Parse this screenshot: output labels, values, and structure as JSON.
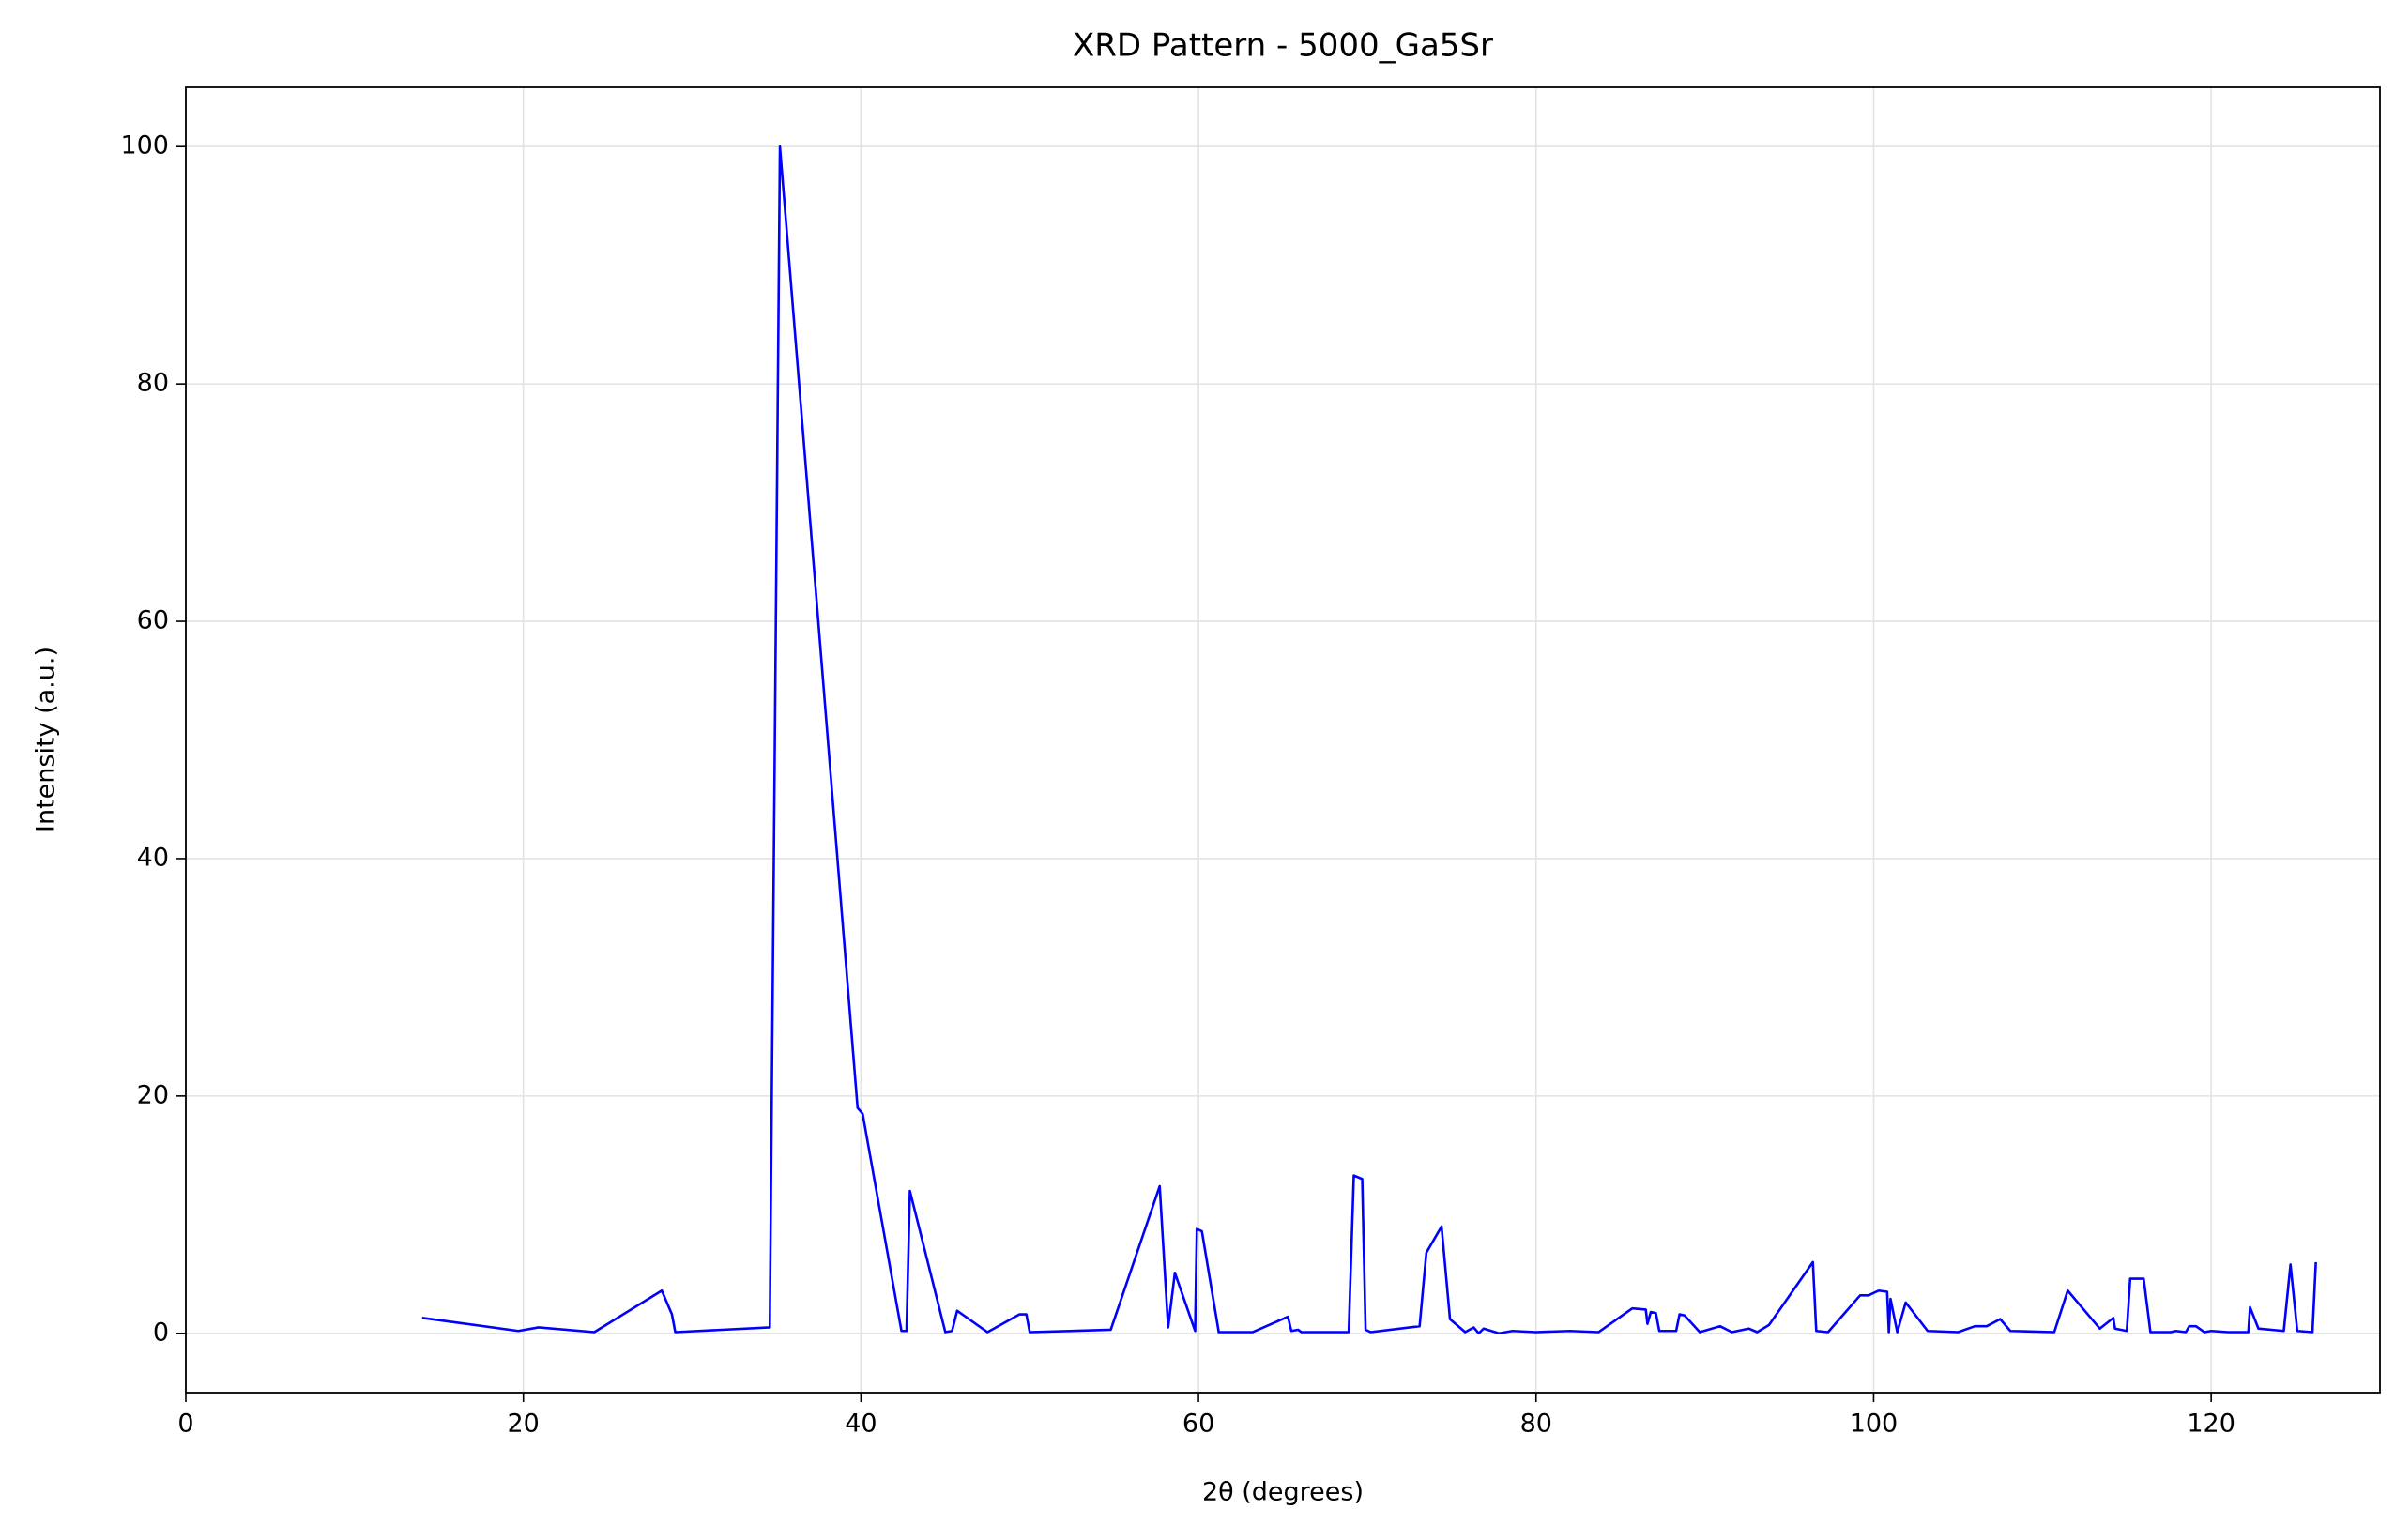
{
  "chart_data": {
    "type": "line",
    "title": "XRD Pattern - 5000_Ga5Sr",
    "x_label": "2θ (degrees)",
    "y_label": "Intensity (a.u.)",
    "xlim": [
      0,
      130
    ],
    "ylim": [
      -5,
      105
    ],
    "xticks": [
      0,
      20,
      40,
      60,
      80,
      100,
      120
    ],
    "yticks": [
      0,
      20,
      40,
      60,
      80,
      100
    ],
    "grid": true,
    "series": [
      {
        "color": "#0000ff",
        "x": [
          14.0,
          19.7,
          20.9,
          24.2,
          28.2,
          28.8,
          29.0,
          34.6,
          35.2,
          39.8,
          40.1,
          42.4,
          42.7,
          42.9,
          45.0,
          45.4,
          45.7,
          47.5,
          49.4,
          49.8,
          50.0,
          54.8,
          57.7,
          58.2,
          58.6,
          59.8,
          59.9,
          60.2,
          61.2,
          63.2,
          65.3,
          65.5,
          65.9,
          66.1,
          68.9,
          69.2,
          69.7,
          69.9,
          70.2,
          73.1,
          73.5,
          74.4,
          74.9,
          75.8,
          76.3,
          76.6,
          76.9,
          77.8,
          78.6,
          80.0,
          82.0,
          83.7,
          85.7,
          86.5,
          86.6,
          86.8,
          87.1,
          87.3,
          88.3,
          88.5,
          88.8,
          89.7,
          90.9,
          91.6,
          92.6,
          93.1,
          93.8,
          96.4,
          96.6,
          97.3,
          99.2,
          99.7,
          100.3,
          100.8,
          100.9,
          101.0,
          101.4,
          101.9,
          103.2,
          105.0,
          106.0,
          106.7,
          107.5,
          108.1,
          110.7,
          111.5,
          113.4,
          114.2,
          114.3,
          115.0,
          115.2,
          116.0,
          116.4,
          117.6,
          117.9,
          118.5,
          118.7,
          119.1,
          119.6,
          120.0,
          121.0,
          122.2,
          122.3,
          122.8,
          124.3,
          124.7,
          125.1,
          126.0,
          126.2
        ],
        "values": [
          1.3,
          0.2,
          0.5,
          0.1,
          3.6,
          1.6,
          0.1,
          0.5,
          100,
          19,
          18.5,
          0.2,
          0.2,
          12,
          0.1,
          0.2,
          1.9,
          0.1,
          1.6,
          1.6,
          0.1,
          0.3,
          12.4,
          0.5,
          5.1,
          0.2,
          8.8,
          8.6,
          0.1,
          0.1,
          1.4,
          0.2,
          0.3,
          0.1,
          0.1,
          13.3,
          13,
          0.3,
          0.1,
          0.6,
          6.8,
          9,
          1.2,
          0.1,
          0.5,
          0,
          0.4,
          0,
          0.2,
          0.1,
          0.2,
          0.1,
          2.1,
          2,
          0.8,
          1.8,
          1.7,
          0.2,
          0.2,
          1.6,
          1.5,
          0.1,
          0.6,
          0.1,
          0.4,
          0.1,
          0.7,
          6.0,
          0.2,
          0.1,
          3.2,
          3.2,
          3.6,
          3.5,
          0.1,
          2.9,
          0.1,
          2.6,
          0.2,
          0.1,
          0.6,
          0.6,
          1.2,
          0.2,
          0.1,
          3.6,
          0.4,
          1.3,
          0.4,
          0.2,
          4.6,
          4.6,
          0.1,
          0.1,
          0.2,
          0.1,
          0.6,
          0.6,
          0.1,
          0.2,
          0.1,
          0.1,
          2.2,
          0.4,
          0.2,
          5.8,
          0.2,
          0.1,
          6.0
        ]
      }
    ]
  }
}
